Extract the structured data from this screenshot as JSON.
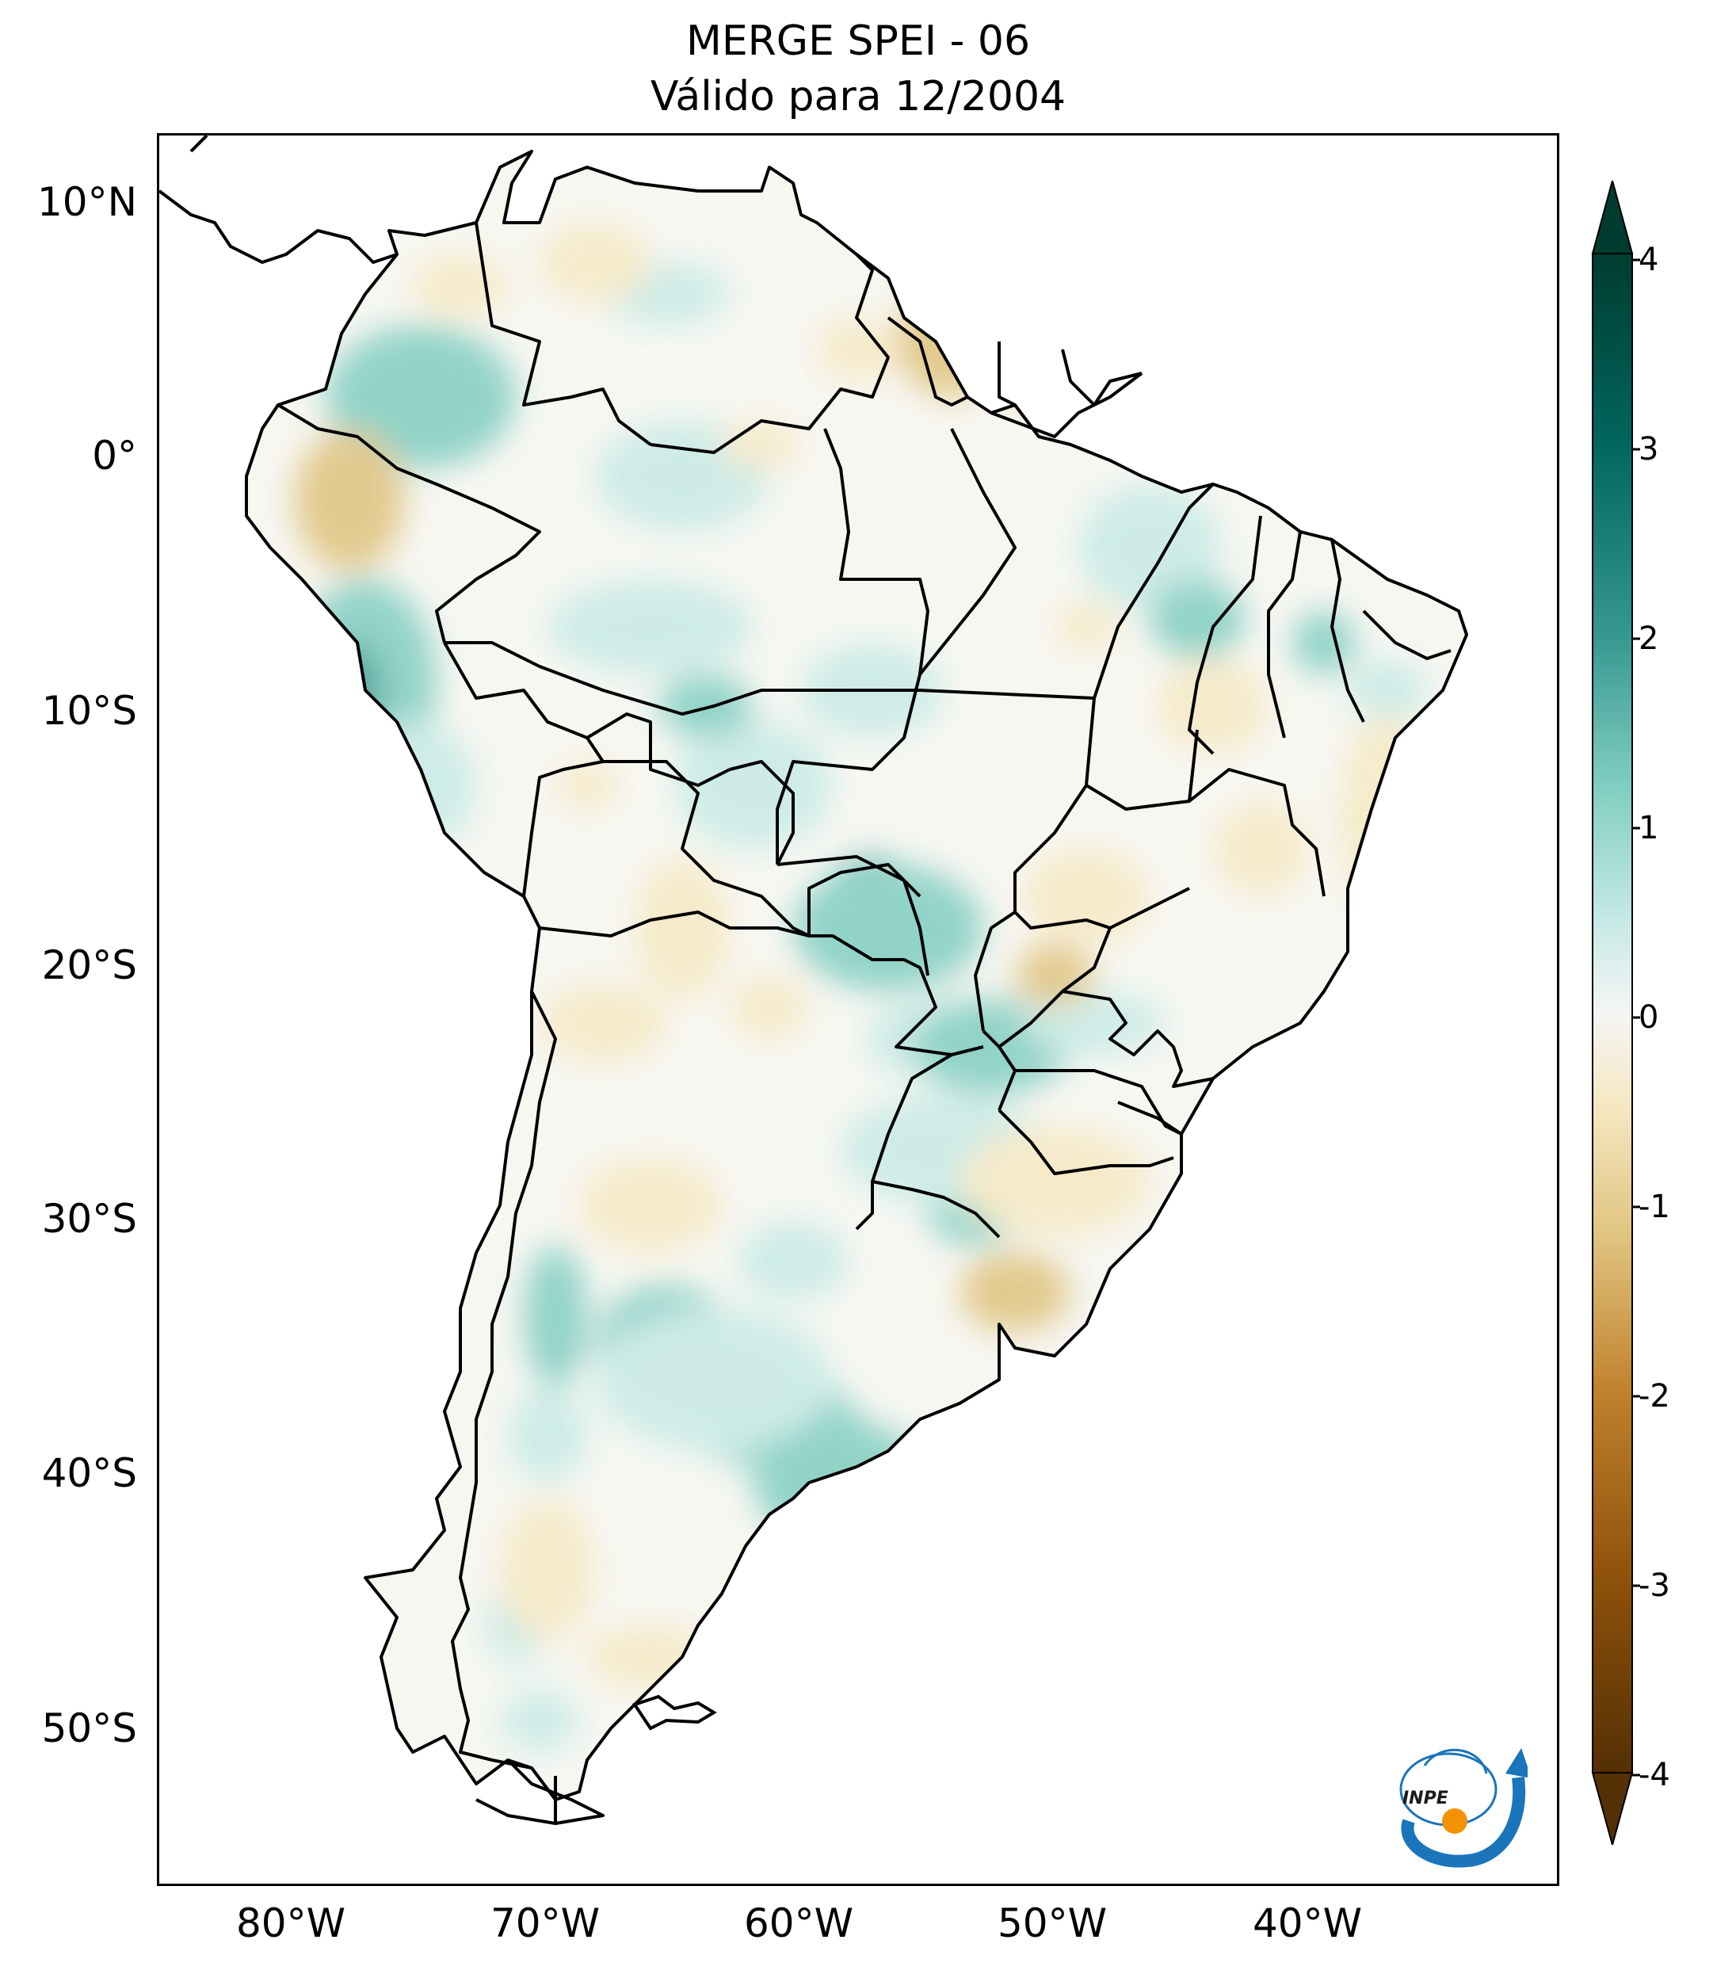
{
  "title": {
    "line1": "MERGE   SPEI - 06",
    "line2": "Válido para 12/2004"
  },
  "axes": {
    "lat_ticks": [
      "10°N",
      "0°",
      "10°S",
      "20°S",
      "30°S",
      "40°S",
      "50°S"
    ],
    "lon_ticks": [
      "80°W",
      "70°W",
      "60°W",
      "50°W",
      "40°W"
    ]
  },
  "colorbar": {
    "ticks": [
      "4",
      "3",
      "2",
      "1",
      "0",
      "-1",
      "-2",
      "-3",
      "-4"
    ],
    "range": [
      -4,
      4
    ],
    "extend": "both",
    "colors": {
      "dry_extreme": "#543005",
      "dry_strong": "#8c510a",
      "dry_moderate": "#bf812d",
      "dry_mild": "#dfc27d",
      "dry_light": "#f6e8c3",
      "neutral": "#f5f5f5",
      "wet_light": "#c7eae5",
      "wet_mild": "#80cdc1",
      "wet_moderate": "#35978f",
      "wet_strong": "#01665e",
      "wet_extreme": "#003c30"
    }
  },
  "logo": {
    "text": "INPE",
    "ring_color": "#1a75bb",
    "dot_color": "#f39200"
  }
}
